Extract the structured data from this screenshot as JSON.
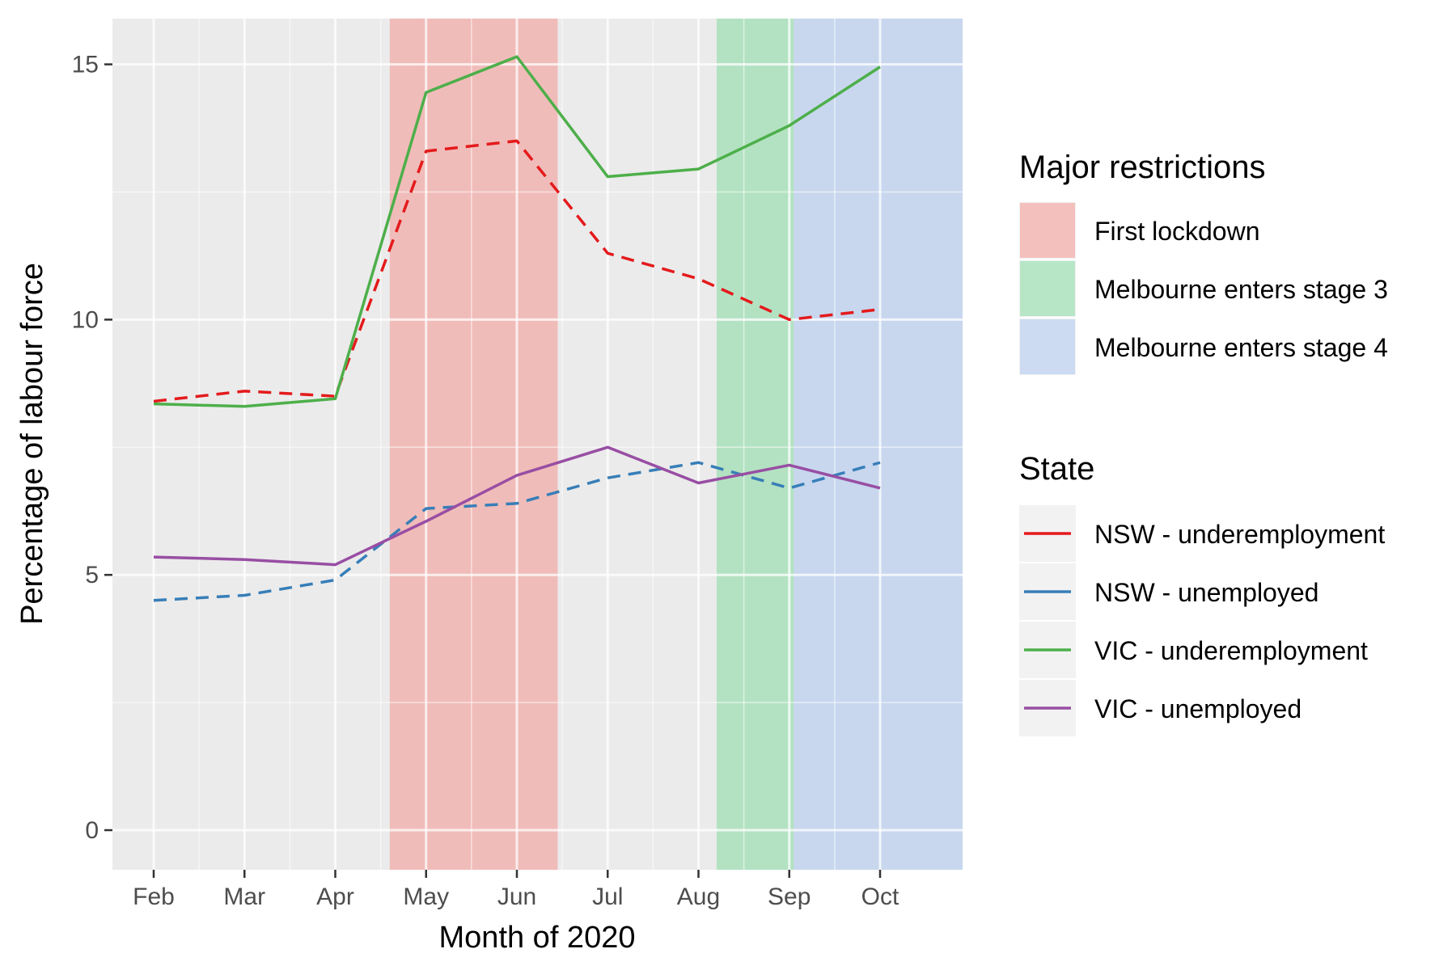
{
  "chart_data": {
    "type": "line",
    "title": "",
    "xlabel": "Month of 2020",
    "ylabel": "Percentage of labour force",
    "ylim": [
      -0.8,
      15.9
    ],
    "yticks": [
      0,
      5,
      10,
      15
    ],
    "categories": [
      "Feb",
      "Mar",
      "Apr",
      "May",
      "Jun",
      "Jul",
      "Aug",
      "Sep",
      "Oct"
    ],
    "grid": true,
    "legend_placement": "right",
    "shaded_regions_title": "Major restrictions",
    "shaded_regions": [
      {
        "label": "First lockdown",
        "start": 2.6,
        "end": 4.45,
        "color": "#F8766D",
        "opacity": 0.4
      },
      {
        "label": "Melbourne enters stage 3",
        "start": 6.2,
        "end": 7.05,
        "color": "#7CD99A",
        "opacity": 0.5
      },
      {
        "label": "Melbourne enters stage 4",
        "start": 7.05,
        "end": 9.5,
        "color": "#A6C3F2",
        "opacity": 0.5
      }
    ],
    "series_title": "State",
    "series": [
      {
        "name": "NSW - underemployment",
        "color": "#E41A1C",
        "dash": "dashed",
        "values": [
          8.4,
          8.6,
          8.5,
          13.3,
          13.5,
          11.3,
          10.8,
          10.0,
          10.2
        ]
      },
      {
        "name": "NSW - unemployed",
        "color": "#377EB8",
        "dash": "dashed",
        "values": [
          4.5,
          4.6,
          4.9,
          6.3,
          6.4,
          6.9,
          7.2,
          6.7,
          7.2
        ]
      },
      {
        "name": "VIC - underemployment",
        "color": "#4DAF4A",
        "dash": "solid",
        "values": [
          8.35,
          8.3,
          8.45,
          14.45,
          15.15,
          12.8,
          12.95,
          13.8,
          14.95
        ]
      },
      {
        "name": "VIC - unemployed",
        "color": "#984EA3",
        "dash": "solid",
        "values": [
          5.35,
          5.3,
          5.2,
          6.05,
          6.95,
          7.5,
          6.8,
          7.15,
          6.7
        ]
      }
    ]
  }
}
